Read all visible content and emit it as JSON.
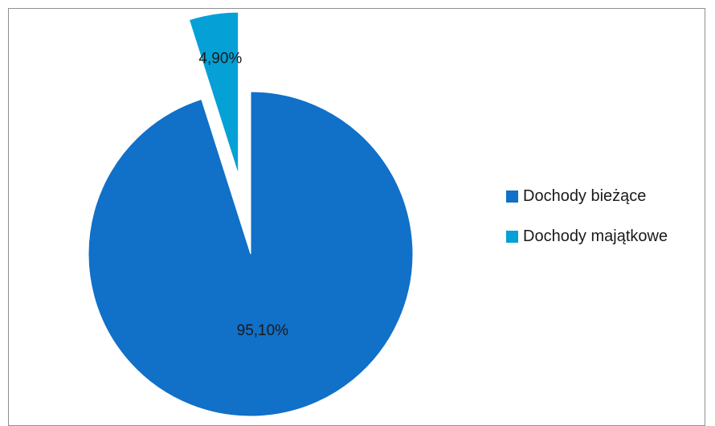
{
  "chart_data": {
    "type": "pie",
    "title": "",
    "series": [
      {
        "values": [
          95.1,
          4.9
        ]
      }
    ],
    "categories": [
      "Dochody bieżące",
      "Dochody majątkowe"
    ],
    "labels": [
      "95,10%",
      "4,90%"
    ],
    "colors": [
      "#1170c8",
      "#05a0d6"
    ],
    "exploded": [
      false,
      true
    ],
    "start_angle_deg": 0,
    "direction": "clockwise",
    "legend_position": "right"
  },
  "legend": {
    "items": [
      {
        "label": "Dochody bieżące",
        "color": "#1170c8"
      },
      {
        "label": "Dochody majątkowe",
        "color": "#05a0d6"
      }
    ]
  }
}
